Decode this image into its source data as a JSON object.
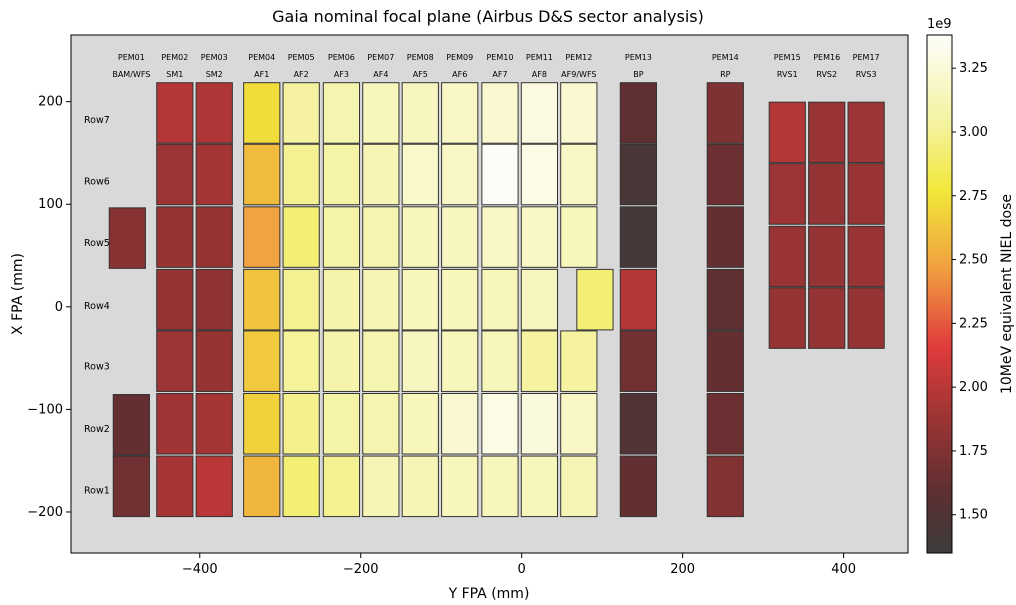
{
  "chart_data": {
    "type": "heatmap",
    "title": "Gaia nominal focal plane (Airbus D&S sector analysis)",
    "xlabel": "Y FPA (mm)",
    "ylabel": "X FPA (mm)",
    "xlim": [
      -560,
      480
    ],
    "ylim": [
      -240,
      265
    ],
    "xticks": [
      -400,
      -200,
      0,
      200,
      400
    ],
    "yticks": [
      -200,
      -100,
      0,
      100,
      200
    ],
    "xtick_labels": [
      "−400",
      "−200",
      "0",
      "200",
      "400"
    ],
    "ytick_labels": [
      "−200",
      "−100",
      "0",
      "100",
      "200"
    ],
    "grid": false,
    "colorbar": {
      "label": "10MeV equivalent NIEL dose",
      "exponent_label": "1e9",
      "range": [
        1.35,
        3.38
      ],
      "ticks": [
        1.5,
        1.75,
        2.0,
        2.25,
        2.5,
        2.75,
        3.0,
        3.25
      ],
      "tick_labels": [
        "1.50",
        "1.75",
        "2.00",
        "2.25",
        "2.50",
        "2.75",
        "3.00",
        "3.25"
      ],
      "colormap": "hot"
    },
    "column_labels": [
      {
        "pem": "PEM01",
        "name": "BAM/WFS",
        "y": -485
      },
      {
        "pem": "PEM02",
        "name": "SM1",
        "y": -431
      },
      {
        "pem": "PEM03",
        "name": "SM2",
        "y": -382
      },
      {
        "pem": "PEM04",
        "name": "AF1",
        "y": -323
      },
      {
        "pem": "PEM05",
        "name": "AF2",
        "y": -274
      },
      {
        "pem": "PEM06",
        "name": "AF3",
        "y": -224
      },
      {
        "pem": "PEM07",
        "name": "AF4",
        "y": -175
      },
      {
        "pem": "PEM08",
        "name": "AF5",
        "y": -126
      },
      {
        "pem": "PEM09",
        "name": "AF6",
        "y": -77
      },
      {
        "pem": "PEM10",
        "name": "AF7",
        "y": -27
      },
      {
        "pem": "PEM11",
        "name": "AF8",
        "y": 22
      },
      {
        "pem": "PEM12",
        "name": "AF9/WFS",
        "y": 71
      },
      {
        "pem": "PEM13",
        "name": "BP",
        "y": 145
      },
      {
        "pem": "PEM14",
        "name": "RP",
        "y": 253
      },
      {
        "pem": "PEM15",
        "name": "RVS1",
        "y": 330
      },
      {
        "pem": "PEM16",
        "name": "RVS2",
        "y": 379
      },
      {
        "pem": "PEM17",
        "name": "RVS3",
        "y": 428
      }
    ],
    "row_labels": [
      {
        "name": "Row7",
        "x": 182
      },
      {
        "name": "Row6",
        "x": 122
      },
      {
        "name": "Row5",
        "x": 62
      },
      {
        "name": "Row4",
        "x": 1
      },
      {
        "name": "Row3",
        "x": -58
      },
      {
        "name": "Row2",
        "x": -119
      },
      {
        "name": "Row1",
        "x": -179
      }
    ],
    "ccds": [
      {
        "y": -490,
        "w": 45,
        "x": 67,
        "h": 59,
        "value": 1.78
      },
      {
        "y": -485,
        "w": 45,
        "x": -115,
        "h": 59,
        "value": 1.62
      },
      {
        "y": -485,
        "w": 45,
        "x": -175,
        "h": 59,
        "value": 1.68
      },
      {
        "y": -431,
        "w": 45,
        "x": 189,
        "h": 59,
        "value": 1.98
      },
      {
        "y": -431,
        "w": 45,
        "x": 129,
        "h": 59,
        "value": 1.88
      },
      {
        "y": -431,
        "w": 45,
        "x": 68,
        "h": 59,
        "value": 1.85
      },
      {
        "y": -431,
        "w": 45,
        "x": 7,
        "h": 59,
        "value": 1.85
      },
      {
        "y": -431,
        "w": 45,
        "x": -53,
        "h": 59,
        "value": 1.88
      },
      {
        "y": -431,
        "w": 45,
        "x": -114,
        "h": 59,
        "value": 1.9
      },
      {
        "y": -431,
        "w": 45,
        "x": -175,
        "h": 59,
        "value": 1.93
      },
      {
        "y": -382,
        "w": 45,
        "x": 189,
        "h": 59,
        "value": 1.96
      },
      {
        "y": -382,
        "w": 45,
        "x": 129,
        "h": 59,
        "value": 1.92
      },
      {
        "y": -382,
        "w": 45,
        "x": 68,
        "h": 59,
        "value": 1.85
      },
      {
        "y": -382,
        "w": 45,
        "x": 7,
        "h": 59,
        "value": 1.82
      },
      {
        "y": -382,
        "w": 45,
        "x": -53,
        "h": 59,
        "value": 1.85
      },
      {
        "y": -382,
        "w": 45,
        "x": -114,
        "h": 59,
        "value": 1.92
      },
      {
        "y": -382,
        "w": 45,
        "x": -175,
        "h": 59,
        "value": 2.0
      },
      {
        "y": -323,
        "w": 45,
        "x": 189,
        "h": 59,
        "value": 2.72
      },
      {
        "y": -323,
        "w": 45,
        "x": 129,
        "h": 59,
        "value": 2.58
      },
      {
        "y": -323,
        "w": 45,
        "x": 68,
        "h": 59,
        "value": 2.48
      },
      {
        "y": -323,
        "w": 45,
        "x": 7,
        "h": 59,
        "value": 2.62
      },
      {
        "y": -323,
        "w": 45,
        "x": -53,
        "h": 59,
        "value": 2.64
      },
      {
        "y": -323,
        "w": 45,
        "x": -114,
        "h": 59,
        "value": 2.68
      },
      {
        "y": -323,
        "w": 45,
        "x": -175,
        "h": 59,
        "value": 2.56
      },
      {
        "y": -274,
        "w": 45,
        "x": 189,
        "h": 59,
        "value": 3.05
      },
      {
        "y": -274,
        "w": 45,
        "x": 129,
        "h": 59,
        "value": 3.0
      },
      {
        "y": -274,
        "w": 45,
        "x": 68,
        "h": 59,
        "value": 2.92
      },
      {
        "y": -274,
        "w": 45,
        "x": 7,
        "h": 59,
        "value": 3.0
      },
      {
        "y": -274,
        "w": 45,
        "x": -53,
        "h": 59,
        "value": 3.02
      },
      {
        "y": -274,
        "w": 45,
        "x": -114,
        "h": 59,
        "value": 2.98
      },
      {
        "y": -274,
        "w": 45,
        "x": -175,
        "h": 59,
        "value": 2.92
      },
      {
        "y": -224,
        "w": 45,
        "x": 189,
        "h": 59,
        "value": 3.1
      },
      {
        "y": -224,
        "w": 45,
        "x": 129,
        "h": 59,
        "value": 3.06
      },
      {
        "y": -224,
        "w": 45,
        "x": 68,
        "h": 59,
        "value": 3.06
      },
      {
        "y": -224,
        "w": 45,
        "x": 7,
        "h": 59,
        "value": 3.08
      },
      {
        "y": -224,
        "w": 45,
        "x": -53,
        "h": 59,
        "value": 3.08
      },
      {
        "y": -224,
        "w": 45,
        "x": -114,
        "h": 59,
        "value": 3.06
      },
      {
        "y": -224,
        "w": 45,
        "x": -175,
        "h": 59,
        "value": 3.0
      },
      {
        "y": -175,
        "w": 45,
        "x": 189,
        "h": 59,
        "value": 3.14
      },
      {
        "y": -175,
        "w": 45,
        "x": 129,
        "h": 59,
        "value": 3.12
      },
      {
        "y": -175,
        "w": 45,
        "x": 68,
        "h": 59,
        "value": 3.1
      },
      {
        "y": -175,
        "w": 45,
        "x": 7,
        "h": 59,
        "value": 3.12
      },
      {
        "y": -175,
        "w": 45,
        "x": -53,
        "h": 59,
        "value": 3.1
      },
      {
        "y": -175,
        "w": 45,
        "x": -114,
        "h": 59,
        "value": 3.1
      },
      {
        "y": -175,
        "w": 45,
        "x": -175,
        "h": 59,
        "value": 3.12
      },
      {
        "y": -126,
        "w": 45,
        "x": 189,
        "h": 59,
        "value": 3.16
      },
      {
        "y": -126,
        "w": 45,
        "x": 129,
        "h": 59,
        "value": 3.2
      },
      {
        "y": -126,
        "w": 45,
        "x": 68,
        "h": 59,
        "value": 3.14
      },
      {
        "y": -126,
        "w": 45,
        "x": 7,
        "h": 59,
        "value": 3.14
      },
      {
        "y": -126,
        "w": 45,
        "x": -53,
        "h": 59,
        "value": 3.16
      },
      {
        "y": -126,
        "w": 45,
        "x": -114,
        "h": 59,
        "value": 3.14
      },
      {
        "y": -126,
        "w": 45,
        "x": -175,
        "h": 59,
        "value": 3.12
      },
      {
        "y": -77,
        "w": 45,
        "x": 189,
        "h": 59,
        "value": 3.18
      },
      {
        "y": -77,
        "w": 45,
        "x": 129,
        "h": 59,
        "value": 3.18
      },
      {
        "y": -77,
        "w": 45,
        "x": 68,
        "h": 59,
        "value": 3.16
      },
      {
        "y": -77,
        "w": 45,
        "x": 7,
        "h": 59,
        "value": 3.14
      },
      {
        "y": -77,
        "w": 45,
        "x": -53,
        "h": 59,
        "value": 3.14
      },
      {
        "y": -77,
        "w": 45,
        "x": -114,
        "h": 59,
        "value": 3.22
      },
      {
        "y": -77,
        "w": 45,
        "x": -175,
        "h": 59,
        "value": 3.14
      },
      {
        "y": -27,
        "w": 45,
        "x": 189,
        "h": 59,
        "value": 3.22
      },
      {
        "y": -27,
        "w": 45,
        "x": 129,
        "h": 59,
        "value": 3.36
      },
      {
        "y": -27,
        "w": 45,
        "x": 68,
        "h": 59,
        "value": 3.18
      },
      {
        "y": -27,
        "w": 45,
        "x": 7,
        "h": 59,
        "value": 3.14
      },
      {
        "y": -27,
        "w": 45,
        "x": -53,
        "h": 59,
        "value": 3.14
      },
      {
        "y": -27,
        "w": 45,
        "x": -114,
        "h": 59,
        "value": 3.3
      },
      {
        "y": -27,
        "w": 45,
        "x": -175,
        "h": 59,
        "value": 3.14
      },
      {
        "y": 22,
        "w": 45,
        "x": 189,
        "h": 59,
        "value": 3.28
      },
      {
        "y": 22,
        "w": 45,
        "x": 129,
        "h": 59,
        "value": 3.3
      },
      {
        "y": 22,
        "w": 45,
        "x": 68,
        "h": 59,
        "value": 3.18
      },
      {
        "y": 22,
        "w": 45,
        "x": 7,
        "h": 59,
        "value": 3.16
      },
      {
        "y": 22,
        "w": 45,
        "x": -53,
        "h": 59,
        "value": 3.04
      },
      {
        "y": 22,
        "w": 45,
        "x": -114,
        "h": 59,
        "value": 3.26
      },
      {
        "y": 22,
        "w": 45,
        "x": -175,
        "h": 59,
        "value": 3.14
      },
      {
        "y": 71,
        "w": 45,
        "x": 189,
        "h": 59,
        "value": 3.22
      },
      {
        "y": 71,
        "w": 45,
        "x": 129,
        "h": 59,
        "value": 3.18
      },
      {
        "y": 71,
        "w": 45,
        "x": 68,
        "h": 59,
        "value": 3.14
      },
      {
        "y": 91,
        "w": 45,
        "x": 7,
        "h": 59,
        "value": 2.92
      },
      {
        "y": 71,
        "w": 45,
        "x": -53,
        "h": 59,
        "value": 3.04
      },
      {
        "y": 71,
        "w": 45,
        "x": -114,
        "h": 59,
        "value": 3.18
      },
      {
        "y": 71,
        "w": 45,
        "x": -175,
        "h": 59,
        "value": 3.12
      },
      {
        "y": 145,
        "w": 45,
        "x": 189,
        "h": 59,
        "value": 1.6
      },
      {
        "y": 145,
        "w": 45,
        "x": 129,
        "h": 59,
        "value": 1.45
      },
      {
        "y": 145,
        "w": 45,
        "x": 68,
        "h": 59,
        "value": 1.42
      },
      {
        "y": 145,
        "w": 45,
        "x": 7,
        "h": 59,
        "value": 1.98
      },
      {
        "y": 145,
        "w": 45,
        "x": -53,
        "h": 59,
        "value": 1.68
      },
      {
        "y": 145,
        "w": 45,
        "x": -114,
        "h": 59,
        "value": 1.5
      },
      {
        "y": 145,
        "w": 45,
        "x": -175,
        "h": 59,
        "value": 1.62
      },
      {
        "y": 253,
        "w": 45,
        "x": 189,
        "h": 59,
        "value": 1.74
      },
      {
        "y": 253,
        "w": 45,
        "x": 129,
        "h": 59,
        "value": 1.66
      },
      {
        "y": 253,
        "w": 45,
        "x": 68,
        "h": 59,
        "value": 1.62
      },
      {
        "y": 253,
        "w": 45,
        "x": 7,
        "h": 59,
        "value": 1.6
      },
      {
        "y": 253,
        "w": 45,
        "x": -53,
        "h": 59,
        "value": 1.62
      },
      {
        "y": 253,
        "w": 45,
        "x": -114,
        "h": 59,
        "value": 1.66
      },
      {
        "y": 253,
        "w": 45,
        "x": -175,
        "h": 59,
        "value": 1.76
      },
      {
        "y": 330,
        "w": 45,
        "x": 170,
        "h": 59,
        "value": 1.98
      },
      {
        "y": 330,
        "w": 45,
        "x": 110,
        "h": 59,
        "value": 1.88
      },
      {
        "y": 330,
        "w": 45,
        "x": 49,
        "h": 59,
        "value": 1.86
      },
      {
        "y": 330,
        "w": 45,
        "x": -11,
        "h": 59,
        "value": 1.85
      },
      {
        "y": 379,
        "w": 45,
        "x": 170,
        "h": 59,
        "value": 1.86
      },
      {
        "y": 379,
        "w": 45,
        "x": 110,
        "h": 59,
        "value": 1.84
      },
      {
        "y": 379,
        "w": 45,
        "x": 49,
        "h": 59,
        "value": 1.84
      },
      {
        "y": 379,
        "w": 45,
        "x": -11,
        "h": 59,
        "value": 1.84
      },
      {
        "y": 428,
        "w": 45,
        "x": 170,
        "h": 59,
        "value": 1.88
      },
      {
        "y": 428,
        "w": 45,
        "x": 110,
        "h": 59,
        "value": 1.86
      },
      {
        "y": 428,
        "w": 45,
        "x": 49,
        "h": 59,
        "value": 1.86
      },
      {
        "y": 428,
        "w": 45,
        "x": -11,
        "h": 59,
        "value": 1.84
      }
    ]
  }
}
